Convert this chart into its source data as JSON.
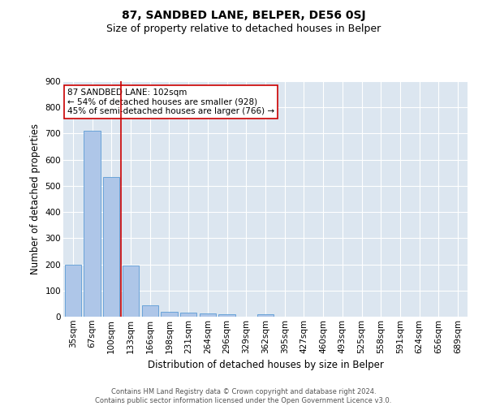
{
  "title": "87, SANDBED LANE, BELPER, DE56 0SJ",
  "subtitle": "Size of property relative to detached houses in Belper",
  "xlabel": "Distribution of detached houses by size in Belper",
  "ylabel": "Number of detached properties",
  "footer_line1": "Contains HM Land Registry data © Crown copyright and database right 2024.",
  "footer_line2": "Contains public sector information licensed under the Open Government Licence v3.0.",
  "categories": [
    "35sqm",
    "67sqm",
    "100sqm",
    "133sqm",
    "166sqm",
    "198sqm",
    "231sqm",
    "264sqm",
    "296sqm",
    "329sqm",
    "362sqm",
    "395sqm",
    "427sqm",
    "460sqm",
    "493sqm",
    "525sqm",
    "558sqm",
    "591sqm",
    "624sqm",
    "656sqm",
    "689sqm"
  ],
  "values": [
    200,
    710,
    535,
    195,
    45,
    18,
    15,
    12,
    8,
    0,
    8,
    0,
    0,
    0,
    0,
    0,
    0,
    0,
    0,
    0,
    0
  ],
  "bar_color": "#aec6e8",
  "bar_edge_color": "#5b9bd5",
  "highlight_line_color": "#cc0000",
  "highlight_bar_idx": 2,
  "annotation_line1": "87 SANDBED LANE: 102sqm",
  "annotation_line2": "← 54% of detached houses are smaller (928)",
  "annotation_line3": "45% of semi-detached houses are larger (766) →",
  "annotation_box_facecolor": "#ffffff",
  "annotation_box_edgecolor": "#cc0000",
  "ylim": [
    0,
    900
  ],
  "yticks": [
    0,
    100,
    200,
    300,
    400,
    500,
    600,
    700,
    800,
    900
  ],
  "background_color": "#dce6f0",
  "title_fontsize": 10,
  "subtitle_fontsize": 9,
  "axis_label_fontsize": 8.5,
  "tick_fontsize": 7.5,
  "annotation_fontsize": 7.5,
  "footer_fontsize": 6,
  "grid_color": "#ffffff",
  "grid_linewidth": 0.8
}
